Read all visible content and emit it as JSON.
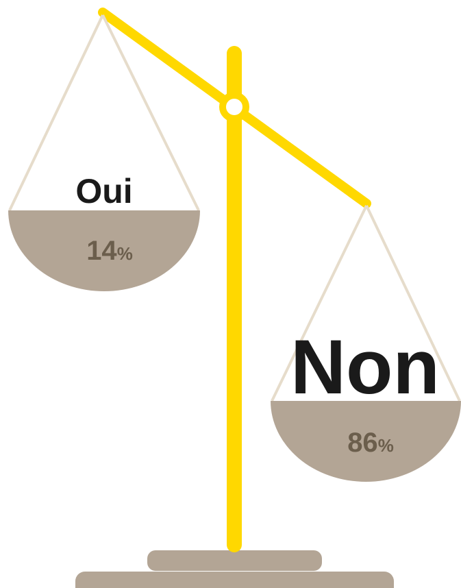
{
  "pans": [
    {
      "label": "Oui",
      "value": 14,
      "unit": "%"
    },
    {
      "label": "Non",
      "value": 86,
      "unit": "%"
    }
  ]
}
